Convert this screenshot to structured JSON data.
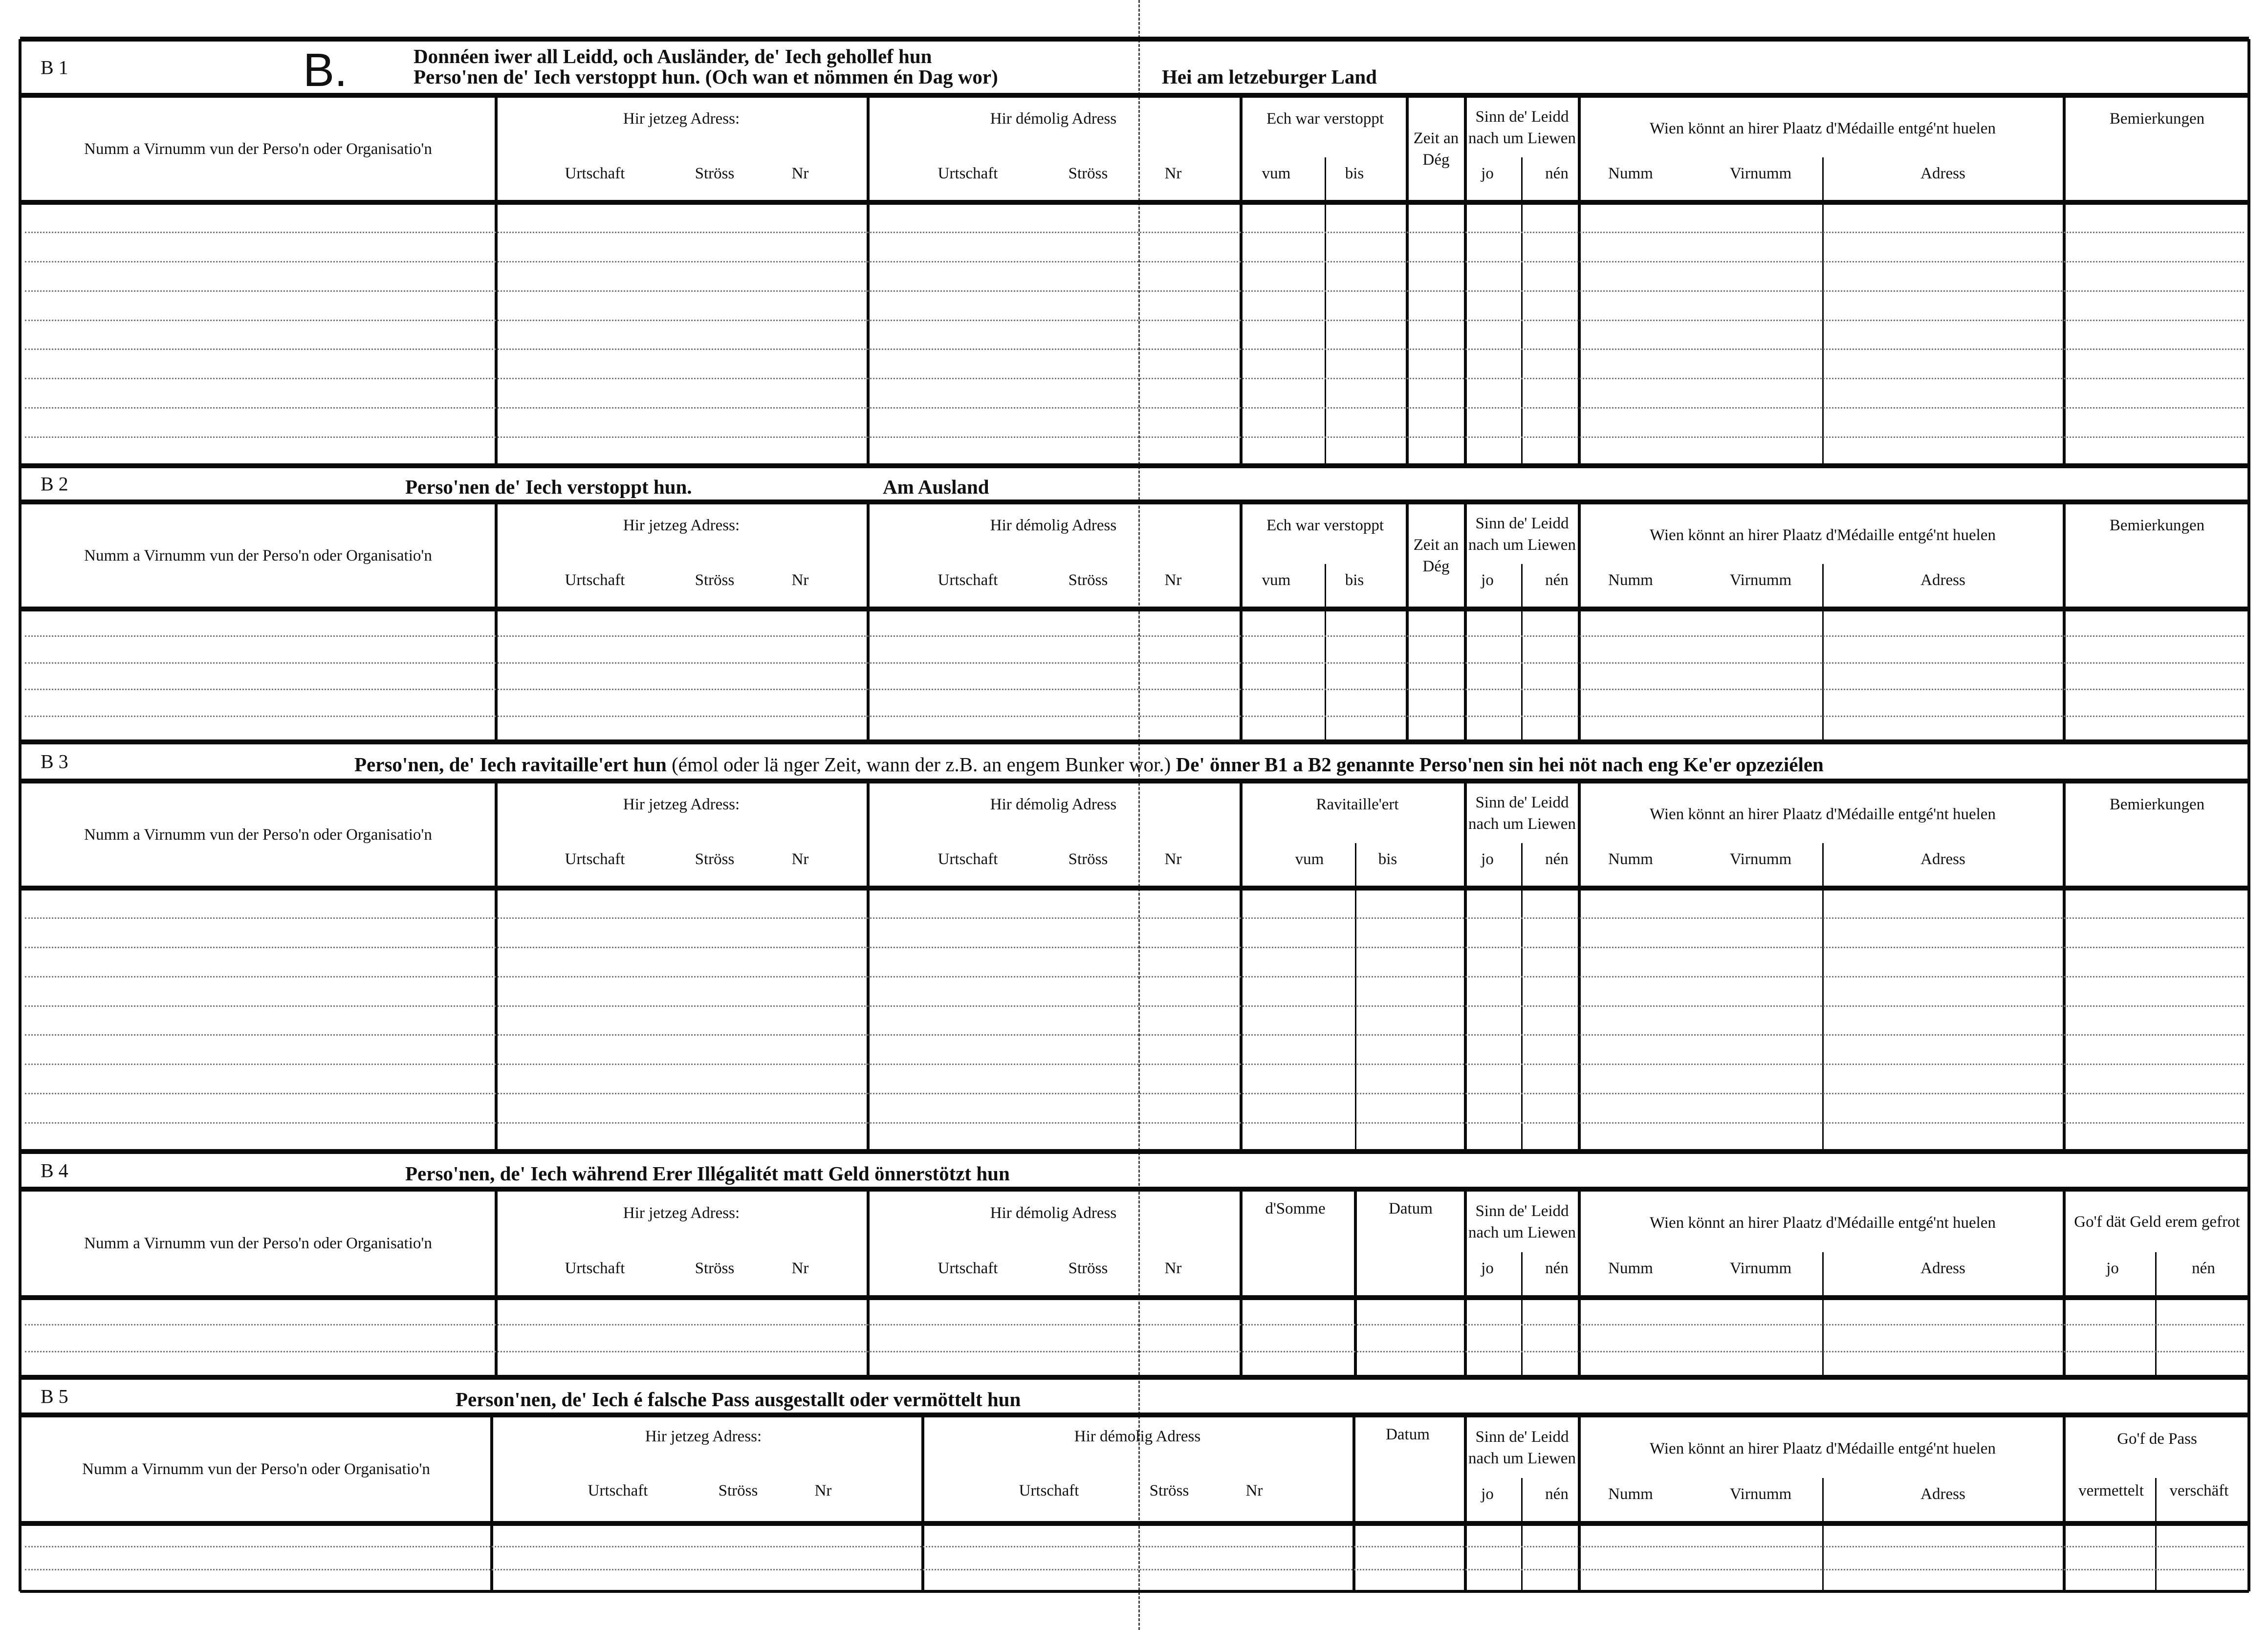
{
  "headers": {
    "name_col": "Numm a Virnumm vun der Perso'n oder Organisatio'n",
    "current_address": "Hir jetzeg Adress:",
    "former_address": "Hir démolig Adress",
    "urtschaft": "Urtschaft",
    "stross": "Ströss",
    "nr": "Nr",
    "hidden": "Ech war verstoppt",
    "vum": "vum",
    "bis": "bis",
    "zeit": "Zeit an Dég",
    "sinn": "Sinn de' Leidd nach um Liewen",
    "jo": "jo",
    "nen": "nén",
    "wien": "Wien könnt an hirer Plaatz d'Médaille entgé'nt huelen",
    "numm": "Numm",
    "virnumm": "Virnumm",
    "adress": "Adress",
    "bemierkungen": "Bemierkungen",
    "ravitailleert": "Ravitaille'ert",
    "somme": "d'Somme",
    "datum": "Datum",
    "geld_gefrot": "Go'f dät Geld erem gefrot",
    "pass": "Go'f de Pass",
    "vermettelt": "vermettelt",
    "verschaft": "verschäft"
  },
  "sections": [
    {
      "id": "B 1",
      "big_letter": "B.",
      "title_line1": "Donnéen iwer all Leidd, och Ausländer, de' Iech gehollef hun",
      "title_line2": "Perso'nen de' Iech verstoppt hun. (Och wan et nömmen én Dag wor)",
      "title_extra": "Hei am letzeburger Land"
    },
    {
      "id": "B 2",
      "title": "Perso'nen de' Iech verstoppt hun.",
      "title_extra": "Am Ausland"
    },
    {
      "id": "B 3",
      "title": "Perso'nen, de' Iech ravitaille'ert hun",
      "title_note": "(émol oder lä nger Zeit, wann der z.B. an engem Bunker wor.)",
      "title_extra": "De' önner B1 a B2 genannte Perso'nen sin hei nöt nach eng Ke'er opzeziélen"
    },
    {
      "id": "B 4",
      "title": "Perso'nen, de' Iech während Erer Illégalitét matt Geld önnerstötzt hun"
    },
    {
      "id": "B 5",
      "title": "Person'nen, de' Iech é falsche Pass ausgestallt oder vermöttelt hun"
    }
  ]
}
